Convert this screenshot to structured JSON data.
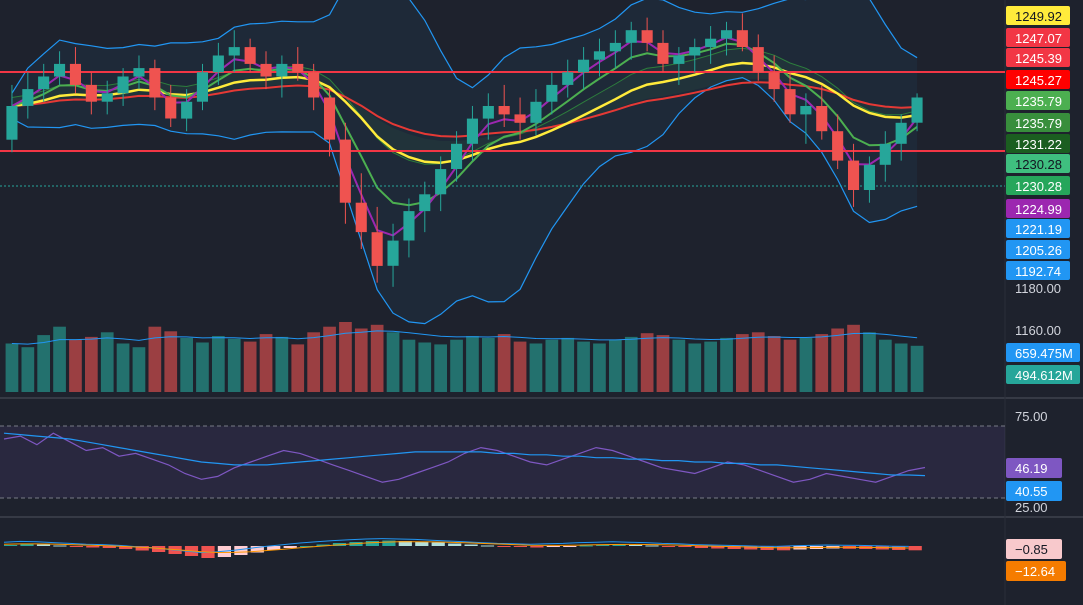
{
  "chart_data": [
    {
      "type": "candlestick",
      "panel": "price",
      "indicators": [
        "SMA/EMA bands",
        "Bollinger Bands",
        "Ichimoku cloud",
        "Volume"
      ],
      "ylim": [
        1160,
        1252
      ],
      "grid": false,
      "price_ticks": [
        "1180.00",
        "1160.00"
      ],
      "horizontal_levels": [
        1245.27,
        1231.22
      ],
      "current_price": 1230.28,
      "candles": [
        [
          1220,
          1233,
          1217,
          1228
        ],
        [
          1228,
          1236,
          1225,
          1232
        ],
        [
          1232,
          1238,
          1229,
          1235
        ],
        [
          1235,
          1241,
          1233,
          1238
        ],
        [
          1238,
          1242,
          1231,
          1233
        ],
        [
          1233,
          1236,
          1226,
          1229
        ],
        [
          1229,
          1234,
          1226,
          1231
        ],
        [
          1231,
          1237,
          1228,
          1235
        ],
        [
          1235,
          1240,
          1232,
          1237
        ],
        [
          1237,
          1239,
          1227,
          1230
        ],
        [
          1230,
          1233,
          1223,
          1225
        ],
        [
          1225,
          1232,
          1222,
          1229
        ],
        [
          1229,
          1238,
          1227,
          1236
        ],
        [
          1236,
          1243,
          1233,
          1240
        ],
        [
          1240,
          1246,
          1236,
          1242
        ],
        [
          1242,
          1244,
          1236,
          1238
        ],
        [
          1238,
          1241,
          1232,
          1235
        ],
        [
          1235,
          1240,
          1230,
          1238
        ],
        [
          1238,
          1242,
          1234,
          1236
        ],
        [
          1236,
          1238,
          1227,
          1230
        ],
        [
          1230,
          1232,
          1216,
          1220
        ],
        [
          1220,
          1224,
          1200,
          1205
        ],
        [
          1205,
          1212,
          1194,
          1198
        ],
        [
          1198,
          1204,
          1186,
          1190
        ],
        [
          1190,
          1200,
          1185,
          1196
        ],
        [
          1196,
          1206,
          1192,
          1203
        ],
        [
          1203,
          1210,
          1198,
          1207
        ],
        [
          1207,
          1216,
          1203,
          1213
        ],
        [
          1213,
          1222,
          1210,
          1219
        ],
        [
          1219,
          1228,
          1215,
          1225
        ],
        [
          1225,
          1231,
          1220,
          1228
        ],
        [
          1228,
          1233,
          1223,
          1226
        ],
        [
          1226,
          1230,
          1220,
          1224
        ],
        [
          1224,
          1232,
          1221,
          1229
        ],
        [
          1229,
          1236,
          1226,
          1233
        ],
        [
          1233,
          1239,
          1230,
          1236
        ],
        [
          1236,
          1242,
          1232,
          1239
        ],
        [
          1239,
          1244,
          1235,
          1241
        ],
        [
          1241,
          1246,
          1237,
          1243
        ],
        [
          1243,
          1248,
          1239,
          1246
        ],
        [
          1246,
          1249,
          1241,
          1243
        ],
        [
          1243,
          1246,
          1236,
          1238
        ],
        [
          1238,
          1242,
          1233,
          1240
        ],
        [
          1240,
          1244,
          1236,
          1242
        ],
        [
          1242,
          1247,
          1238,
          1244
        ],
        [
          1244,
          1248,
          1240,
          1246
        ],
        [
          1246,
          1250,
          1241,
          1242
        ],
        [
          1242,
          1245,
          1234,
          1236
        ],
        [
          1236,
          1240,
          1229,
          1232
        ],
        [
          1232,
          1236,
          1224,
          1226
        ],
        [
          1226,
          1231,
          1219,
          1228
        ],
        [
          1228,
          1233,
          1220,
          1222
        ],
        [
          1222,
          1226,
          1213,
          1215
        ],
        [
          1215,
          1219,
          1204,
          1208
        ],
        [
          1208,
          1216,
          1205,
          1214
        ],
        [
          1214,
          1222,
          1210,
          1219
        ],
        [
          1219,
          1226,
          1215,
          1224
        ],
        [
          1224,
          1231,
          1222,
          1230
        ]
      ],
      "volumes": [
        520,
        480,
        610,
        700,
        560,
        590,
        640,
        520,
        480,
        700,
        650,
        580,
        530,
        600,
        570,
        540,
        620,
        590,
        510,
        640,
        700,
        750,
        680,
        720,
        640,
        560,
        530,
        510,
        560,
        600,
        580,
        620,
        540,
        520,
        560,
        580,
        540,
        520,
        560,
        590,
        630,
        610,
        560,
        520,
        540,
        580,
        620,
        640,
        600,
        560,
        580,
        620,
        680,
        720,
        640,
        560,
        520,
        495
      ]
    },
    {
      "type": "line",
      "panel": "rsi",
      "ylim": [
        25,
        75
      ],
      "series": [
        {
          "color": "#7e57c2",
          "values": [
            66,
            68,
            62,
            70,
            64,
            58,
            60,
            54,
            56,
            52,
            48,
            42,
            38,
            40,
            46,
            50,
            54,
            58,
            56,
            52,
            48,
            44,
            40,
            36,
            38,
            42,
            46,
            50,
            56,
            60,
            58,
            54,
            50,
            48,
            52,
            56,
            60,
            58,
            54,
            50,
            46,
            44,
            42,
            46,
            50,
            48,
            44,
            40,
            36,
            38,
            42,
            40,
            38,
            36,
            40,
            44,
            46.19
          ]
        },
        {
          "color": "#2196f3",
          "values": [
            70,
            69,
            68,
            67,
            66,
            64,
            62,
            60,
            58,
            56,
            54,
            52,
            50,
            49,
            48,
            48,
            48,
            49,
            50,
            51,
            52,
            53,
            54,
            55,
            56,
            57,
            57,
            57,
            57,
            57,
            56,
            56,
            55,
            55,
            54,
            54,
            53,
            53,
            52,
            52,
            51,
            51,
            50,
            50,
            49,
            49,
            48,
            48,
            47,
            46,
            45,
            44,
            43,
            42,
            41,
            41,
            40.55
          ]
        }
      ],
      "ticks": [
        "75.00",
        "25.00"
      ],
      "badges": [
        "46.19",
        "40.55"
      ]
    },
    {
      "type": "bar",
      "panel": "macd",
      "values": [
        0.2,
        0.4,
        0.3,
        0.1,
        -0.1,
        -0.3,
        -0.4,
        -0.6,
        -0.9,
        -1.2,
        -1.6,
        -2.0,
        -2.4,
        -2.2,
        -1.8,
        -1.3,
        -0.8,
        -0.4,
        0.0,
        0.3,
        0.6,
        0.8,
        1.0,
        1.1,
        1.0,
        0.9,
        0.7,
        0.5,
        0.3,
        0.1,
        -0.1,
        -0.2,
        -0.3,
        -0.2,
        -0.1,
        0.1,
        0.2,
        0.3,
        0.2,
        0.1,
        -0.1,
        -0.2,
        -0.4,
        -0.5,
        -0.6,
        -0.7,
        -0.8,
        -0.85,
        -0.7,
        -0.6,
        -0.5,
        -0.55,
        -0.6,
        -0.7,
        -0.8,
        -0.85
      ],
      "macd_badge": "−0.85",
      "signal_badge": "−12.64"
    }
  ],
  "price_axis": {
    "badges": [
      {
        "label": "1249.92",
        "bg": "#ffeb3b",
        "fg": "#131722"
      },
      {
        "label": "1247.07",
        "bg": "#f23645",
        "fg": "#ffffff"
      },
      {
        "label": "1245.39",
        "bg": "#f23645",
        "fg": "#ffffff"
      },
      {
        "label": "1245.27",
        "bg": "#ff0000",
        "fg": "#ffffff"
      },
      {
        "label": "1235.79",
        "bg": "#4caf50",
        "fg": "#ffffff"
      },
      {
        "label": "1235.79",
        "bg": "#388e3c",
        "fg": "#ffffff"
      },
      {
        "label": "1231.22",
        "bg": "#1b5e20",
        "fg": "#ffffff"
      },
      {
        "label": "1230.28",
        "bg": "#3fbf7f",
        "fg": "#131722"
      },
      {
        "label": "1230.28",
        "bg": "#26a65b",
        "fg": "#ffffff"
      },
      {
        "label": "1224.99",
        "bg": "#9c27b0",
        "fg": "#ffffff"
      },
      {
        "label": "1221.19",
        "bg": "#2196f3",
        "fg": "#ffffff"
      },
      {
        "label": "1205.26",
        "bg": "#2196f3",
        "fg": "#ffffff"
      },
      {
        "label": "1192.74",
        "bg": "#2196f3",
        "fg": "#ffffff"
      }
    ],
    "plain_ticks": [
      "1180.00",
      "1160.00"
    ],
    "volume_badges": [
      {
        "label": "659.475M",
        "bg": "#2196f3",
        "fg": "#ffffff"
      },
      {
        "label": "494.612M",
        "bg": "#26a69a",
        "fg": "#ffffff"
      }
    ]
  },
  "colors": {
    "background": "#1e222d",
    "up": "#26a69a",
    "down": "#ef5350",
    "yellow_ma": "#ffeb3b",
    "red_ma": "#e53935",
    "green_ma": "#4caf50",
    "purple_ma": "#9c27b0",
    "bollinger": "#2196f3",
    "level_line": "#f23645"
  }
}
